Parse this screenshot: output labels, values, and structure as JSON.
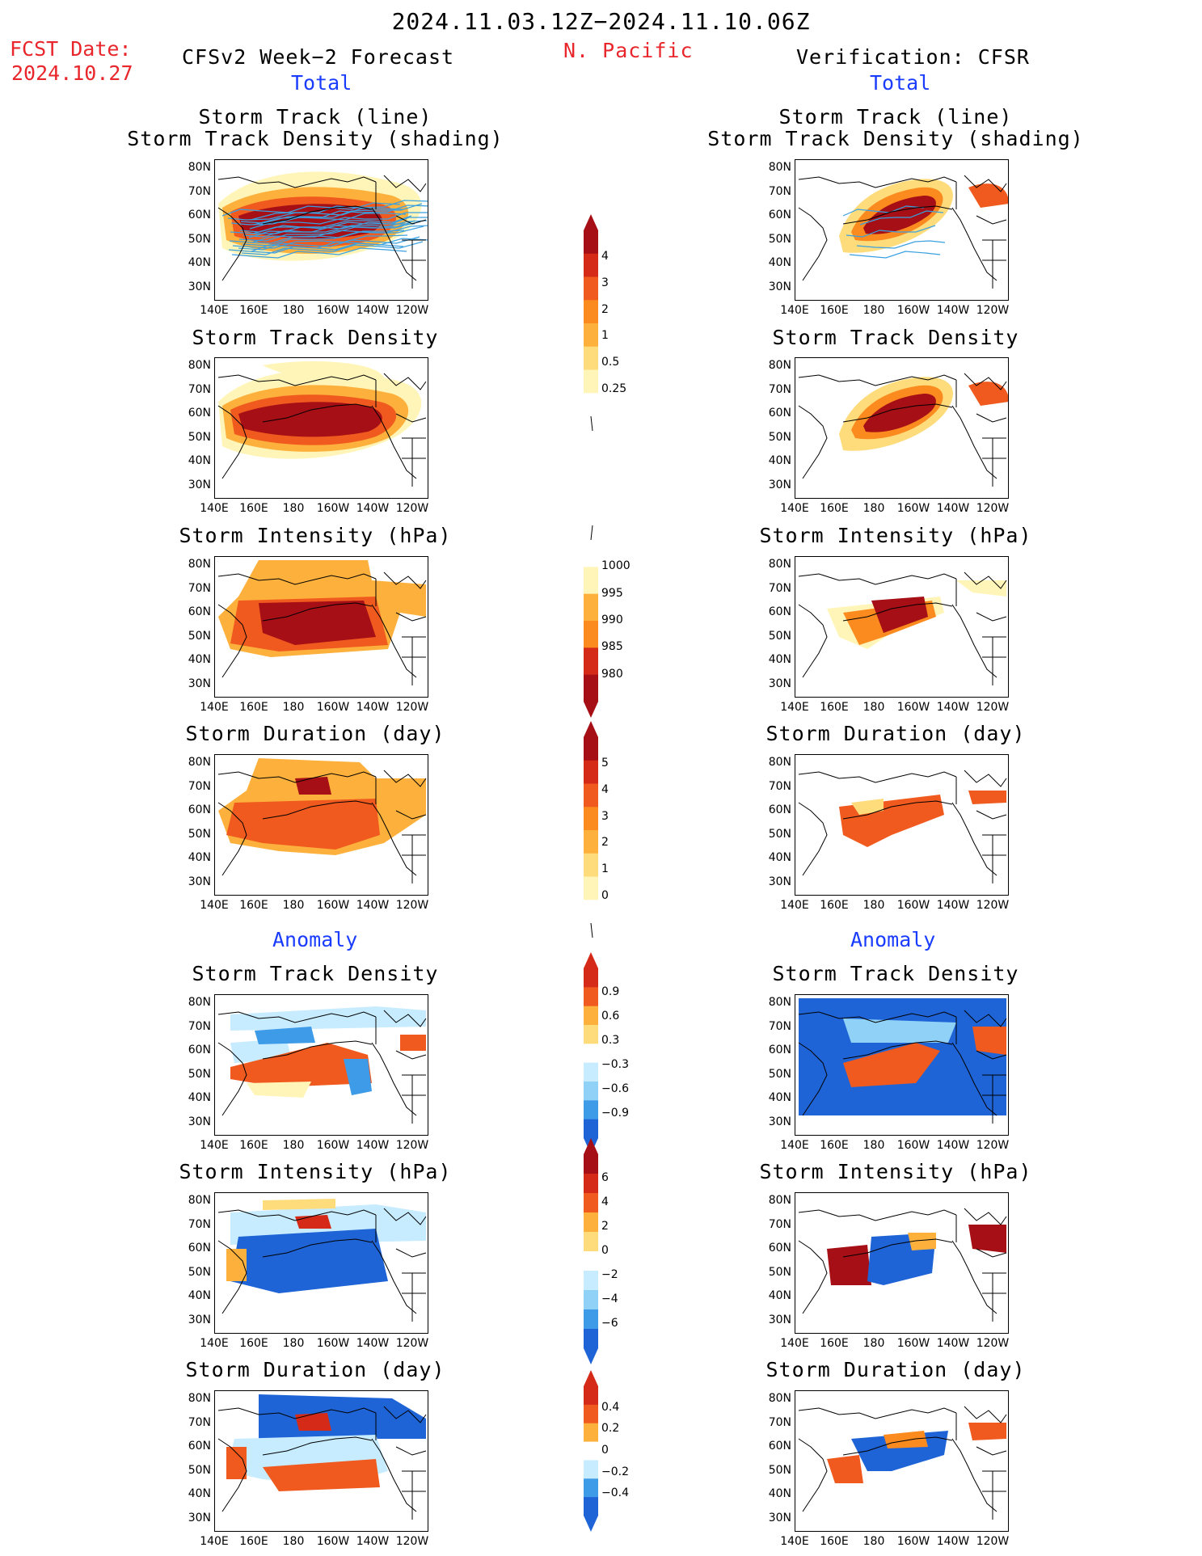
{
  "header": {
    "period": "2024.11.03.12Z−2024.11.10.06Z",
    "fcst_label": "FCST Date:",
    "fcst_date": "2024.10.27",
    "region": "N. Pacific",
    "left_title": "CFSv2 Week−2 Forecast",
    "right_title": "Verification: CFSR",
    "left_total": "Total",
    "right_total": "Total",
    "left_anomaly": "Anomaly",
    "right_anomaly": "Anomaly"
  },
  "panel_titles": {
    "track_line": "Storm Track (line)",
    "track_density_shading": "Storm Track Density (shading)",
    "track_density": "Storm Track Density",
    "intensity": "Storm Intensity (hPa)",
    "duration": "Storm Duration (day)"
  },
  "axes": {
    "lat_labels": [
      "80N",
      "70N",
      "60N",
      "50N",
      "40N",
      "30N"
    ],
    "lon_labels": [
      "140E",
      "160E",
      "180",
      "160W",
      "140W",
      "120W"
    ]
  },
  "colorbars": {
    "density_total": [
      "4",
      "3",
      "2",
      "1",
      "0.5",
      "0.25"
    ],
    "intensity_total": [
      "1000",
      "995",
      "990",
      "985",
      "980"
    ],
    "duration_total": [
      "5",
      "4",
      "3",
      "2",
      "1",
      "0"
    ],
    "density_anom": [
      "0.9",
      "0.6",
      "0.3",
      "−0.3",
      "−0.6",
      "−0.9"
    ],
    "intensity_anom": [
      "6",
      "4",
      "2",
      "0",
      "−2",
      "−4",
      "−6"
    ],
    "duration_anom": [
      "0.4",
      "0.2",
      "0",
      "−0.2",
      "−0.4"
    ]
  },
  "colors": {
    "title_red": "#e8262b",
    "title_blue": "#1a3cff",
    "warm_scale": [
      "#fff5b8",
      "#fedc7c",
      "#fdb13c",
      "#fb8a1f",
      "#f05a1e",
      "#d52a17",
      "#a50f15"
    ],
    "cool_scale": [
      "#c7ecff",
      "#8fd1f7",
      "#3d9be8",
      "#1f64d6"
    ]
  }
}
